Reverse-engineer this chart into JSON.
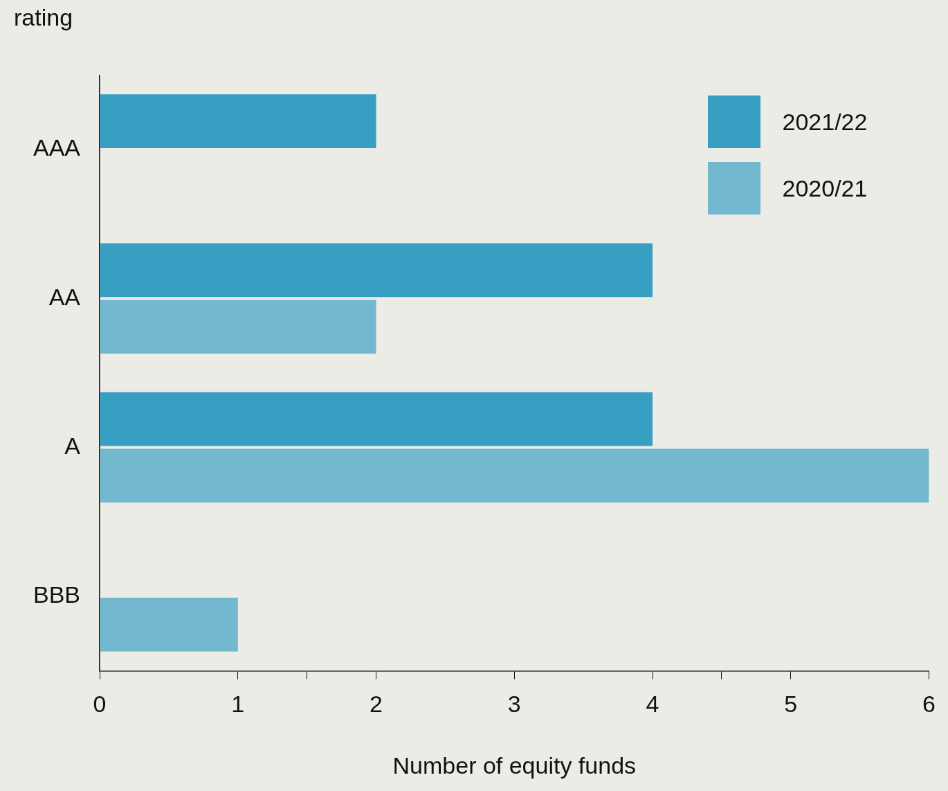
{
  "chart_data": {
    "type": "bar",
    "orientation": "horizontal",
    "ylabel": "rating",
    "xlabel": "Number of equity funds",
    "categories": [
      "AAA",
      "AA",
      "A",
      "BBB"
    ],
    "series": [
      {
        "name": "2021/22",
        "color": "#379fc1",
        "values": [
          2,
          4,
          4,
          null
        ]
      },
      {
        "name": "2020/21",
        "color": "#74b8d0",
        "values": [
          null,
          2,
          6,
          1
        ]
      }
    ],
    "xlim": [
      0,
      6
    ],
    "xticks": [
      0,
      1,
      {
        "value": 1.5,
        "label": null
      },
      2,
      3,
      4,
      {
        "value": 4.5,
        "label": null
      },
      5,
      6
    ],
    "grid": false,
    "legend": "top right"
  }
}
